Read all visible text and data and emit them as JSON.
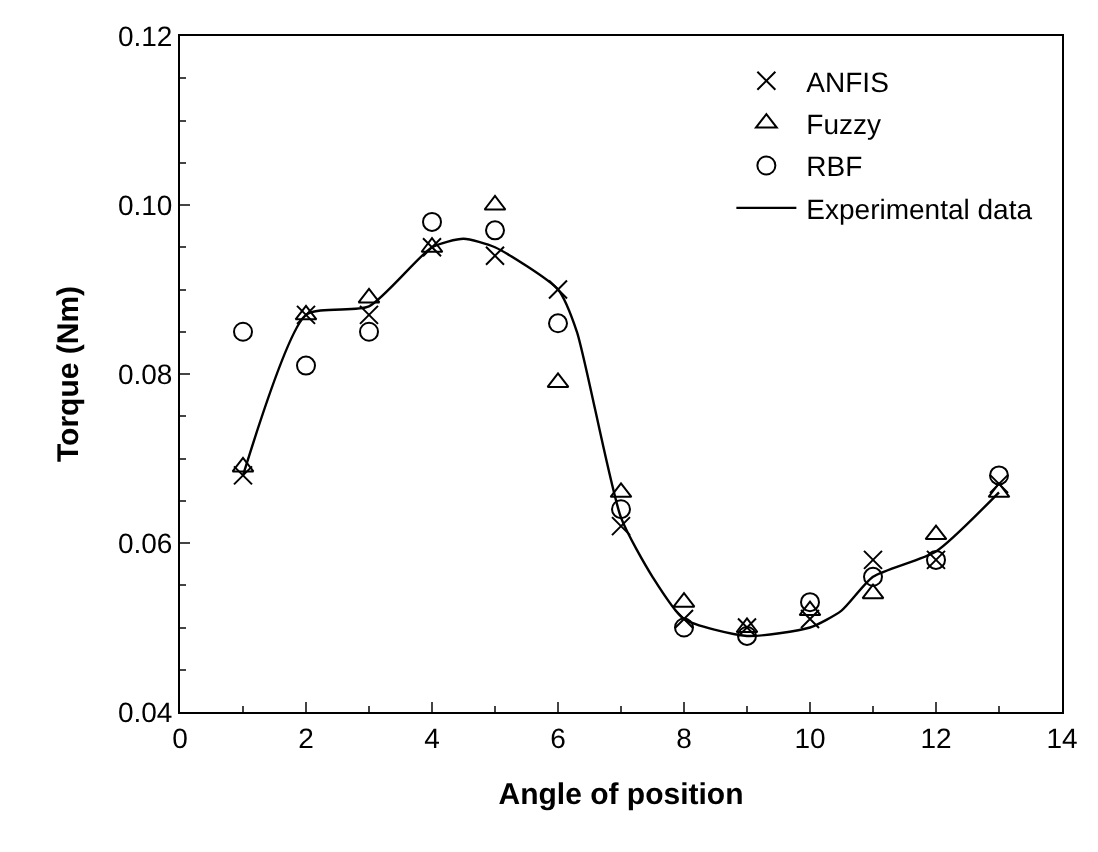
{
  "chart_data": {
    "type": "scatter",
    "xlabel": "Angle of position",
    "ylabel": "Torque (Nm)",
    "xlim": [
      0,
      14
    ],
    "xticks": [
      0,
      2,
      4,
      6,
      8,
      10,
      12,
      14
    ],
    "ylim": [
      0.04,
      0.12
    ],
    "yticks": [
      0.04,
      0.06,
      0.08,
      {
        "value": 0.1,
        "label": "0.10"
      },
      0.12
    ],
    "legend": "top right",
    "series": [
      {
        "name": "ANFIS",
        "color": "#000000",
        "marker": "cross",
        "x": [
          1,
          2,
          3,
          4,
          5,
          6,
          7,
          8,
          9,
          10,
          11,
          12,
          13
        ],
        "values": [
          0.068,
          0.087,
          0.087,
          0.095,
          0.094,
          0.09,
          0.062,
          0.051,
          0.05,
          0.051,
          0.058,
          0.058,
          0.067
        ]
      },
      {
        "name": "Fuzzy",
        "color": "#000000",
        "marker": "triangle",
        "x": [
          1,
          2,
          3,
          4,
          5,
          6,
          7,
          8,
          9,
          10,
          11,
          12,
          13
        ],
        "values": [
          0.069,
          0.087,
          0.089,
          0.095,
          0.1,
          0.079,
          0.066,
          0.053,
          0.05,
          0.052,
          0.054,
          0.061,
          0.066
        ]
      },
      {
        "name": "RBF",
        "color": "#000000",
        "marker": "circle",
        "x": [
          1,
          2,
          3,
          4,
          5,
          6,
          7,
          8,
          9,
          10,
          11,
          12,
          13
        ],
        "values": [
          0.085,
          0.081,
          0.085,
          0.098,
          0.097,
          0.086,
          0.064,
          0.05,
          0.049,
          0.053,
          0.056,
          0.058,
          0.068
        ]
      },
      {
        "name": "Experimental data",
        "type": "line",
        "color": "#000000",
        "marker": "none",
        "line_style": "solid",
        "x": [
          1,
          2,
          3,
          4,
          4.5,
          5,
          6,
          6.3,
          7,
          7.5,
          8,
          9,
          10,
          10.5,
          11,
          12,
          13
        ],
        "values": [
          0.068,
          0.087,
          0.088,
          0.095,
          0.096,
          0.095,
          0.09,
          0.085,
          0.063,
          0.056,
          0.051,
          0.049,
          0.05,
          0.052,
          0.056,
          0.059,
          0.066
        ]
      }
    ]
  }
}
